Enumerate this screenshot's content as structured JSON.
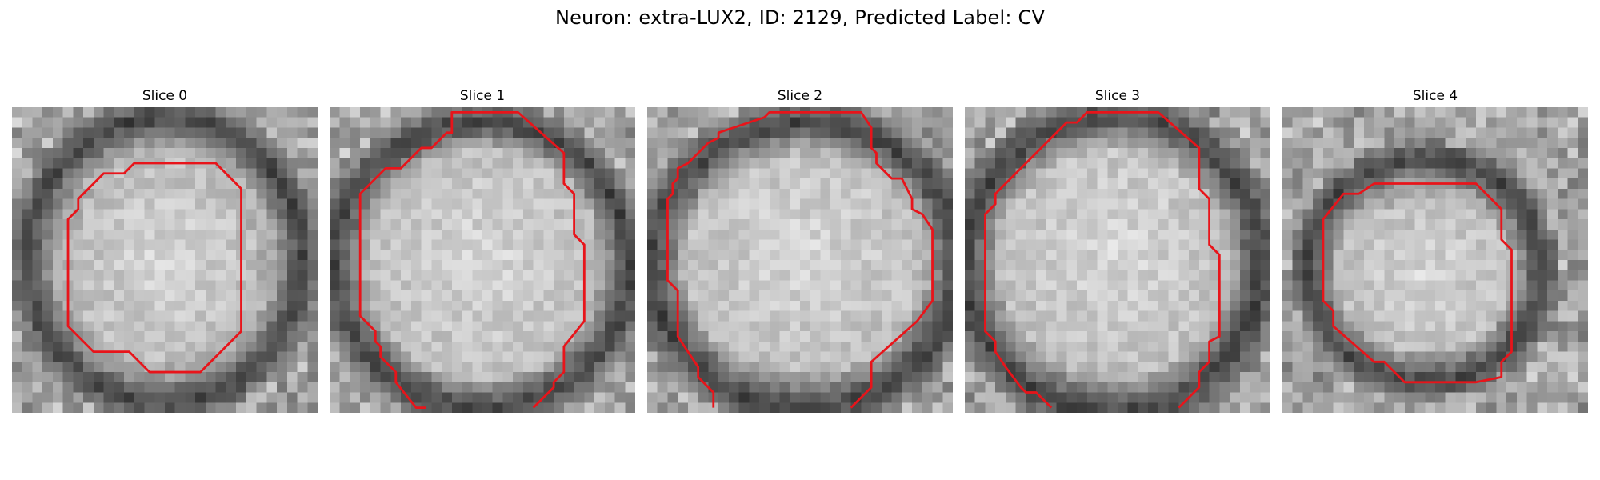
{
  "figure": {
    "title": "Neuron: extra-LUX2, ID: 2129, Predicted Label: CV",
    "contour_color": "#e8141a",
    "colormap": "grayscale",
    "panels": [
      {
        "title": "Slice 0",
        "contour": [
          [
            20,
            5.5
          ],
          [
            22.5,
            8
          ],
          [
            22.5,
            22
          ],
          [
            18.5,
            26
          ],
          [
            13.5,
            26
          ],
          [
            11.5,
            24
          ],
          [
            8,
            24
          ],
          [
            5.5,
            21.5
          ],
          [
            5.5,
            11
          ],
          [
            6.5,
            10
          ],
          [
            6.5,
            9
          ],
          [
            9,
            6.5
          ],
          [
            11,
            6.5
          ],
          [
            12,
            5.5
          ],
          [
            20,
            5.5
          ]
        ],
        "contour_closed": true,
        "core": {
          "cx": 15,
          "cy": 15,
          "rx": 9,
          "ry": 10
        },
        "ring": {
          "cx": 15,
          "cy": 15,
          "rx": 13.5,
          "ry": 14,
          "width": 3
        }
      },
      {
        "title": "Slice 1",
        "contour": [
          [
            9.5,
            29.5
          ],
          [
            8.5,
            29.5
          ],
          [
            6.5,
            27
          ],
          [
            6.5,
            26
          ],
          [
            5,
            24.5
          ],
          [
            5,
            23.5
          ],
          [
            4.5,
            23
          ],
          [
            4.5,
            22
          ],
          [
            3,
            20.5
          ],
          [
            3,
            8.5
          ],
          [
            5.5,
            6
          ],
          [
            7,
            6
          ],
          [
            9,
            4
          ],
          [
            10,
            4
          ],
          [
            11.5,
            2.5
          ],
          [
            12,
            2.5
          ],
          [
            12,
            0.5
          ],
          [
            18.5,
            0.5
          ],
          [
            23,
            4.5
          ],
          [
            23,
            7.5
          ],
          [
            24,
            8.5
          ],
          [
            24,
            12.5
          ],
          [
            25,
            13.5
          ],
          [
            25,
            21
          ],
          [
            23,
            23.5
          ],
          [
            23,
            26
          ],
          [
            22,
            27
          ],
          [
            22,
            27.5
          ],
          [
            20,
            29.5
          ]
        ],
        "contour_closed": false,
        "core": {
          "cx": 15,
          "cy": 15,
          "rx": 11.5,
          "ry": 12
        },
        "ring": {
          "cx": 15,
          "cy": 15.5,
          "rx": 14.5,
          "ry": 14,
          "width": 3
        }
      },
      {
        "title": "Slice 2",
        "contour": [
          [
            6.5,
            29.5
          ],
          [
            6.5,
            28
          ],
          [
            5,
            26.5
          ],
          [
            5,
            25.5
          ],
          [
            3,
            22.5
          ],
          [
            3,
            18
          ],
          [
            2,
            17
          ],
          [
            2,
            9
          ],
          [
            2.5,
            8.5
          ],
          [
            2.5,
            7.5
          ],
          [
            3,
            7
          ],
          [
            3,
            6
          ],
          [
            4,
            5.5
          ],
          [
            5.5,
            4
          ],
          [
            6,
            3.5
          ],
          [
            7,
            3
          ],
          [
            7,
            2.5
          ],
          [
            11.5,
            1
          ],
          [
            12,
            0.5
          ],
          [
            21,
            0.5
          ],
          [
            22,
            2
          ],
          [
            22,
            4
          ],
          [
            22.5,
            4.5
          ],
          [
            22.5,
            5.5
          ],
          [
            23,
            6
          ],
          [
            24,
            7
          ],
          [
            25,
            7
          ],
          [
            25.5,
            8
          ],
          [
            26,
            9
          ],
          [
            26,
            10
          ],
          [
            27,
            10.5
          ],
          [
            28,
            12
          ],
          [
            28,
            19
          ],
          [
            26.5,
            21
          ],
          [
            22,
            25
          ],
          [
            22,
            27.5
          ],
          [
            20,
            29.5
          ]
        ],
        "contour_closed": false,
        "core": {
          "cx": 15.5,
          "cy": 14.5,
          "rx": 12.5,
          "ry": 12
        },
        "ring": {
          "cx": 15.5,
          "cy": 15.5,
          "rx": 15,
          "ry": 14,
          "width": 3.5
        }
      },
      {
        "title": "Slice 3",
        "contour": [
          [
            8.5,
            29.5
          ],
          [
            7,
            28
          ],
          [
            6,
            28
          ],
          [
            5.5,
            27.5
          ],
          [
            4,
            25.5
          ],
          [
            3,
            24
          ],
          [
            3,
            23
          ],
          [
            2,
            22
          ],
          [
            2,
            10.5
          ],
          [
            3,
            9.5
          ],
          [
            3,
            8.5
          ],
          [
            10,
            1.5
          ],
          [
            11,
            1.5
          ],
          [
            12,
            0.5
          ],
          [
            19,
            0.5
          ],
          [
            23,
            4
          ],
          [
            23,
            8
          ],
          [
            24,
            9
          ],
          [
            24,
            13.5
          ],
          [
            25,
            14.5
          ],
          [
            25,
            22.5
          ],
          [
            24,
            23
          ],
          [
            24,
            25
          ],
          [
            23,
            26
          ],
          [
            23,
            27.5
          ],
          [
            21,
            29.5
          ]
        ],
        "contour_closed": false,
        "core": {
          "cx": 15,
          "cy": 14,
          "rx": 12.5,
          "ry": 12.5
        },
        "ring": {
          "cx": 14.5,
          "cy": 15.5,
          "rx": 14.5,
          "ry": 14.5,
          "width": 3.5
        }
      },
      {
        "title": "Slice 4",
        "contour": [
          [
            19,
            7.5
          ],
          [
            21.5,
            10
          ],
          [
            21.5,
            13
          ],
          [
            22.5,
            14
          ],
          [
            22.5,
            24
          ],
          [
            21.5,
            25
          ],
          [
            21.5,
            26.5
          ],
          [
            19,
            27
          ],
          [
            12,
            27
          ],
          [
            10,
            25
          ],
          [
            9,
            25
          ],
          [
            5,
            21.5
          ],
          [
            5,
            20
          ],
          [
            4,
            19
          ],
          [
            4,
            11
          ],
          [
            6,
            8.5
          ],
          [
            7.5,
            8.5
          ],
          [
            9,
            7.5
          ],
          [
            19,
            7.5
          ]
        ],
        "contour_closed": true,
        "core": {
          "cx": 14,
          "cy": 16.5,
          "rx": 9,
          "ry": 7.5
        },
        "ring": {
          "cx": 14,
          "cy": 16,
          "rx": 11.5,
          "ry": 11,
          "width": 3
        }
      }
    ]
  }
}
